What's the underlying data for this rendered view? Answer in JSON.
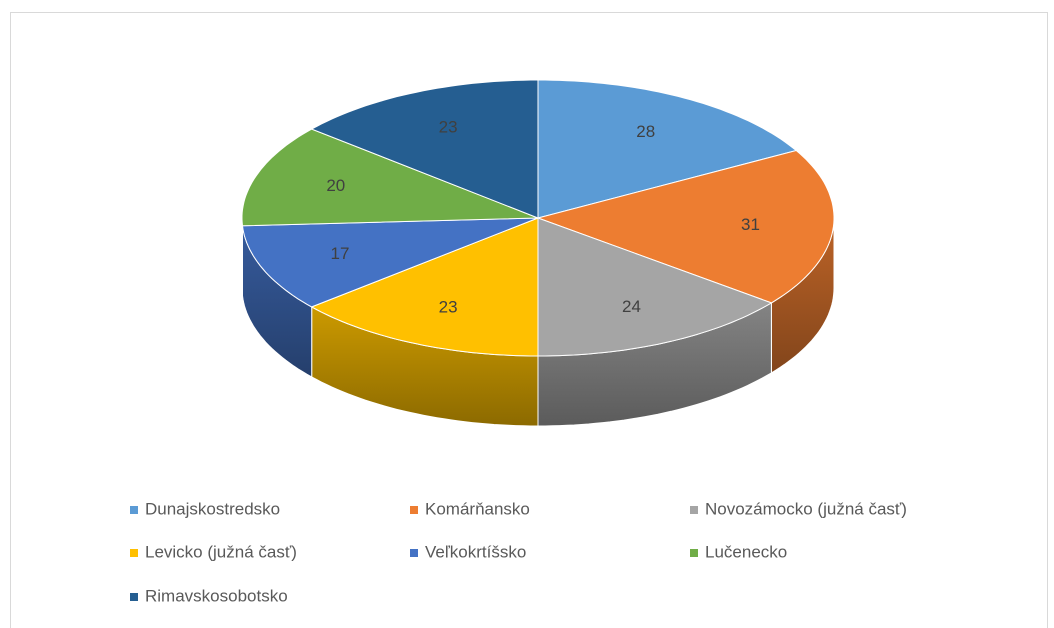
{
  "chart_data": {
    "type": "pie",
    "categories": [
      "Dunajskostredsko",
      "Komárňansko",
      "Novozámocko (južná časť)",
      "Levicko (južná časť)",
      "Veľkokrtíšsko",
      "Lučenecko",
      "Rimavskosobotsko"
    ],
    "values": [
      28,
      31,
      24,
      23,
      17,
      20,
      23
    ],
    "colors": [
      "#5b9bd5",
      "#ed7d31",
      "#a5a5a5",
      "#ffc000",
      "#4472c4",
      "#70ad47",
      "#255e91"
    ],
    "legend": "bottom"
  }
}
